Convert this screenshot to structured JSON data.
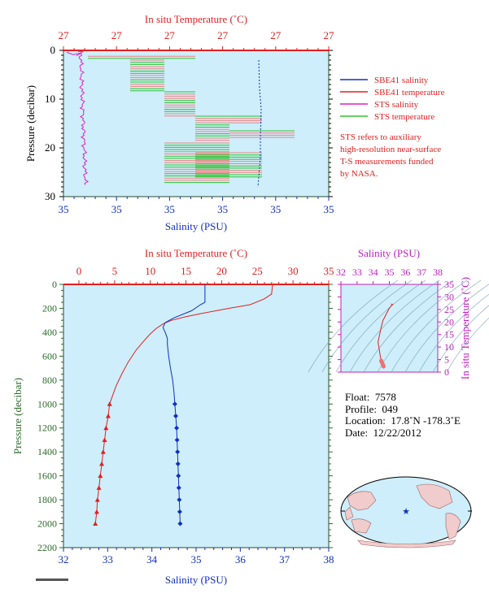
{
  "top_chart": {
    "top_axis_label": "In situ Temperature (˚C)",
    "top_ticks": [
      "27",
      "27",
      "27",
      "27",
      "27",
      "27"
    ],
    "bottom_axis_label": "Salinity (PSU)",
    "bottom_ticks": [
      "35",
      "35",
      "35",
      "35",
      "35",
      "35"
    ],
    "y_axis_label": "Pressure (decibar)",
    "y_ticks": [
      "0",
      "10",
      "20",
      "30"
    ],
    "legend": [
      {
        "label": "SBE41 salinity",
        "color": "#1030c0"
      },
      {
        "label": "SBE41 temperature",
        "color": "#e02020"
      },
      {
        "label": "STS salinity",
        "color": "#e020c8"
      },
      {
        "label": "STS temperature",
        "color": "#30c030"
      }
    ],
    "note": [
      "STS refers to auxiliary",
      "high-resolution near-surface",
      "T-S measurements funded",
      "by NASA."
    ]
  },
  "main_chart": {
    "top_axis_label": "In situ Temperature (˚C)",
    "top_ticks": [
      "0",
      "5",
      "10",
      "15",
      "20",
      "25",
      "30",
      "35"
    ],
    "bottom_axis_label": "Salinity (PSU)",
    "bottom_ticks": [
      "32",
      "33",
      "34",
      "35",
      "36",
      "37",
      "38"
    ],
    "y_axis_label": "Pressure (decibar)",
    "y_ticks": [
      "0",
      "200",
      "400",
      "600",
      "800",
      "1000",
      "1200",
      "1400",
      "1600",
      "1800",
      "2000",
      "2200"
    ]
  },
  "ts_chart": {
    "top_axis_label": "Salinity (PSU)",
    "top_ticks": [
      "32",
      "33",
      "34",
      "35",
      "36",
      "37",
      "38"
    ],
    "right_axis_label": "In situ Temperature (˚C)",
    "right_ticks": [
      "0",
      "5",
      "10",
      "15",
      "20",
      "25",
      "30",
      "35"
    ]
  },
  "info": {
    "float_label": "Float:",
    "float_value": "7578",
    "profile_label": "Profile:",
    "profile_value": "049",
    "location_label": "Location:",
    "location_value": "17.8˚N  -178.3˚E",
    "date_label": "Date:",
    "date_value": "12/22/2012"
  },
  "colors": {
    "temperature": "#e02020",
    "salinity": "#1030c0",
    "sts_salinity": "#e020c8",
    "sts_temperature": "#30c030",
    "plot_bg": "#cdeefa",
    "ts_axis": "#c020c0",
    "pressure_label": "#2a6a2a"
  },
  "chart_data": [
    {
      "type": "line",
      "y_axis": "pressure",
      "ylim": [
        30,
        0
      ],
      "series": [
        {
          "name": "STS salinity",
          "x_axis": "salinity",
          "approx": "near-constant jittery trace 0–28 dbar, left of plot"
        },
        {
          "name": "STS temperature",
          "x_axis": "temperature",
          "approx": "step-like bands 1–27 dbar"
        },
        {
          "name": "SBE41 salinity",
          "x_axis": "salinity",
          "approx": "dashed vertical trace 2–28 dbar"
        },
        {
          "name": "SBE41 temperature",
          "x_axis": "temperature",
          "approx": "bands overlapping STS temperature"
        }
      ]
    },
    {
      "type": "line",
      "y_axis": "pressure",
      "ylim": [
        2200,
        0
      ],
      "temperature_xlim": [
        0,
        35
      ],
      "salinity_xlim": [
        32,
        38
      ],
      "series": [
        {
          "name": "temperature",
          "pressure": [
            0,
            20,
            80,
            120,
            170,
            200,
            240,
            270,
            300,
            330,
            370,
            420,
            480,
            550,
            650,
            750,
            850,
            950,
            1000,
            1100,
            1200,
            1300,
            1400,
            1500,
            1600,
            1700,
            1800,
            1900,
            2000
          ],
          "values": [
            27.1,
            27.1,
            27.0,
            26.0,
            24.0,
            21.0,
            17.5,
            15.0,
            13.0,
            11.8,
            10.8,
            9.9,
            9.0,
            8.0,
            6.9,
            6.0,
            5.2,
            4.6,
            4.3,
            4.1,
            3.8,
            3.6,
            3.4,
            3.2,
            3.0,
            2.8,
            2.6,
            2.5,
            2.3
          ]
        },
        {
          "name": "salinity",
          "pressure": [
            0,
            150,
            170,
            220,
            280,
            320,
            360,
            400,
            450,
            500,
            600,
            700,
            800,
            900,
            1000,
            1100,
            1200,
            1300,
            1400,
            1500,
            1600,
            1700,
            1800,
            1900,
            2000
          ],
          "values": [
            35.2,
            35.2,
            35.1,
            34.9,
            34.5,
            34.3,
            34.25,
            34.3,
            34.35,
            34.35,
            34.38,
            34.42,
            34.47,
            34.5,
            34.52,
            34.54,
            34.56,
            34.57,
            34.58,
            34.59,
            34.6,
            34.61,
            34.62,
            34.63,
            34.64
          ]
        }
      ]
    },
    {
      "type": "scatter",
      "x_axis": "salinity",
      "xlim": [
        32,
        38
      ],
      "y_axis": "temperature",
      "ylim": [
        0,
        35
      ],
      "series": [
        {
          "name": "T-S",
          "x": [
            34.64,
            34.6,
            34.55,
            34.5,
            34.45,
            34.4,
            34.35,
            34.3,
            34.4,
            34.5,
            34.6,
            34.8,
            35.0,
            35.2,
            35.1
          ],
          "y": [
            2.3,
            3.0,
            3.8,
            4.5,
            6.0,
            8.0,
            10.0,
            12.0,
            15.0,
            18.0,
            20.5,
            23.0,
            25.5,
            27.0,
            27.2
          ]
        }
      ]
    }
  ]
}
